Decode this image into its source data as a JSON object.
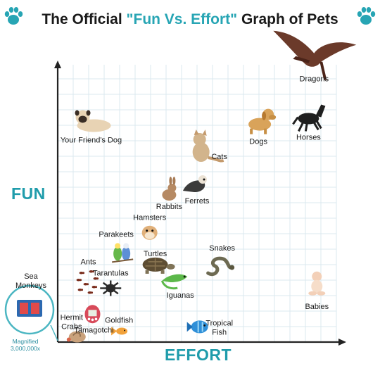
{
  "title": {
    "prefix": "The Official ",
    "highlight": "\"Fun Vs. Effort\"",
    "suffix": " Graph of Pets"
  },
  "icons": {
    "left": "paw-print-icon",
    "right": "paw-print-icon"
  },
  "colors": {
    "accent": "#27a5b4",
    "grid": "#dbe8ef",
    "axis": "#222222"
  },
  "chart_data": {
    "type": "scatter",
    "xlabel": "EFFORT",
    "ylabel": "FUN",
    "grid": true,
    "xlim": [
      0,
      100
    ],
    "ylim": [
      0,
      100
    ],
    "points": [
      {
        "label": "Dragons",
        "x": 92,
        "y": 95,
        "icon": "dragon-icon"
      },
      {
        "label": "Dogs",
        "x": 72,
        "y": 77,
        "icon": "dog-icon"
      },
      {
        "label": "Horses",
        "x": 90,
        "y": 74,
        "icon": "horse-icon"
      },
      {
        "label": "Your Friend's Dog",
        "x": 12,
        "y": 74,
        "icon": "pug-icon"
      },
      {
        "label": "Cats",
        "x": 58,
        "y": 67,
        "icon": "cat-icon"
      },
      {
        "label": "Ferrets",
        "x": 50,
        "y": 51,
        "icon": "ferret-icon"
      },
      {
        "label": "Hamsters",
        "x": 33,
        "y": 45,
        "icon": "hamster-icon"
      },
      {
        "label": "Rabbits",
        "x": 40,
        "y": 49,
        "icon": "rabbit-icon"
      },
      {
        "label": "Parakeets",
        "x": 21,
        "y": 39,
        "icon": "parakeet-icon"
      },
      {
        "label": "Snakes",
        "x": 59,
        "y": 34,
        "icon": "snake-icon"
      },
      {
        "label": "Turtles",
        "x": 35,
        "y": 32,
        "icon": "turtle-icon"
      },
      {
        "label": "Ants",
        "x": 11,
        "y": 29,
        "icon": "ant-icon"
      },
      {
        "label": "Tarantulas",
        "x": 19,
        "y": 25,
        "icon": "tarantula-icon"
      },
      {
        "label": "Iguanas",
        "x": 44,
        "y": 17,
        "icon": "iguana-icon"
      },
      {
        "label": "Hermit Crabs",
        "x": 5,
        "y": 9,
        "icon": "hermit-crab-icon"
      },
      {
        "label": "Goldfish",
        "x": 22,
        "y": 8,
        "icon": "goldfish-icon"
      },
      {
        "label": "Tamagotchi",
        "x": 13,
        "y": 5,
        "icon": "tamagotchi-icon"
      },
      {
        "label": "Tropical Fish",
        "x": 58,
        "y": 7,
        "icon": "tropical-fish-icon"
      },
      {
        "label": "Babies",
        "x": 93,
        "y": 13,
        "icon": "baby-icon"
      },
      {
        "label": "Sea Monkeys",
        "x": 0,
        "y": 0,
        "icon": "sea-monkeys-kit-icon",
        "note": "Magnified 3,000,000x"
      }
    ]
  }
}
